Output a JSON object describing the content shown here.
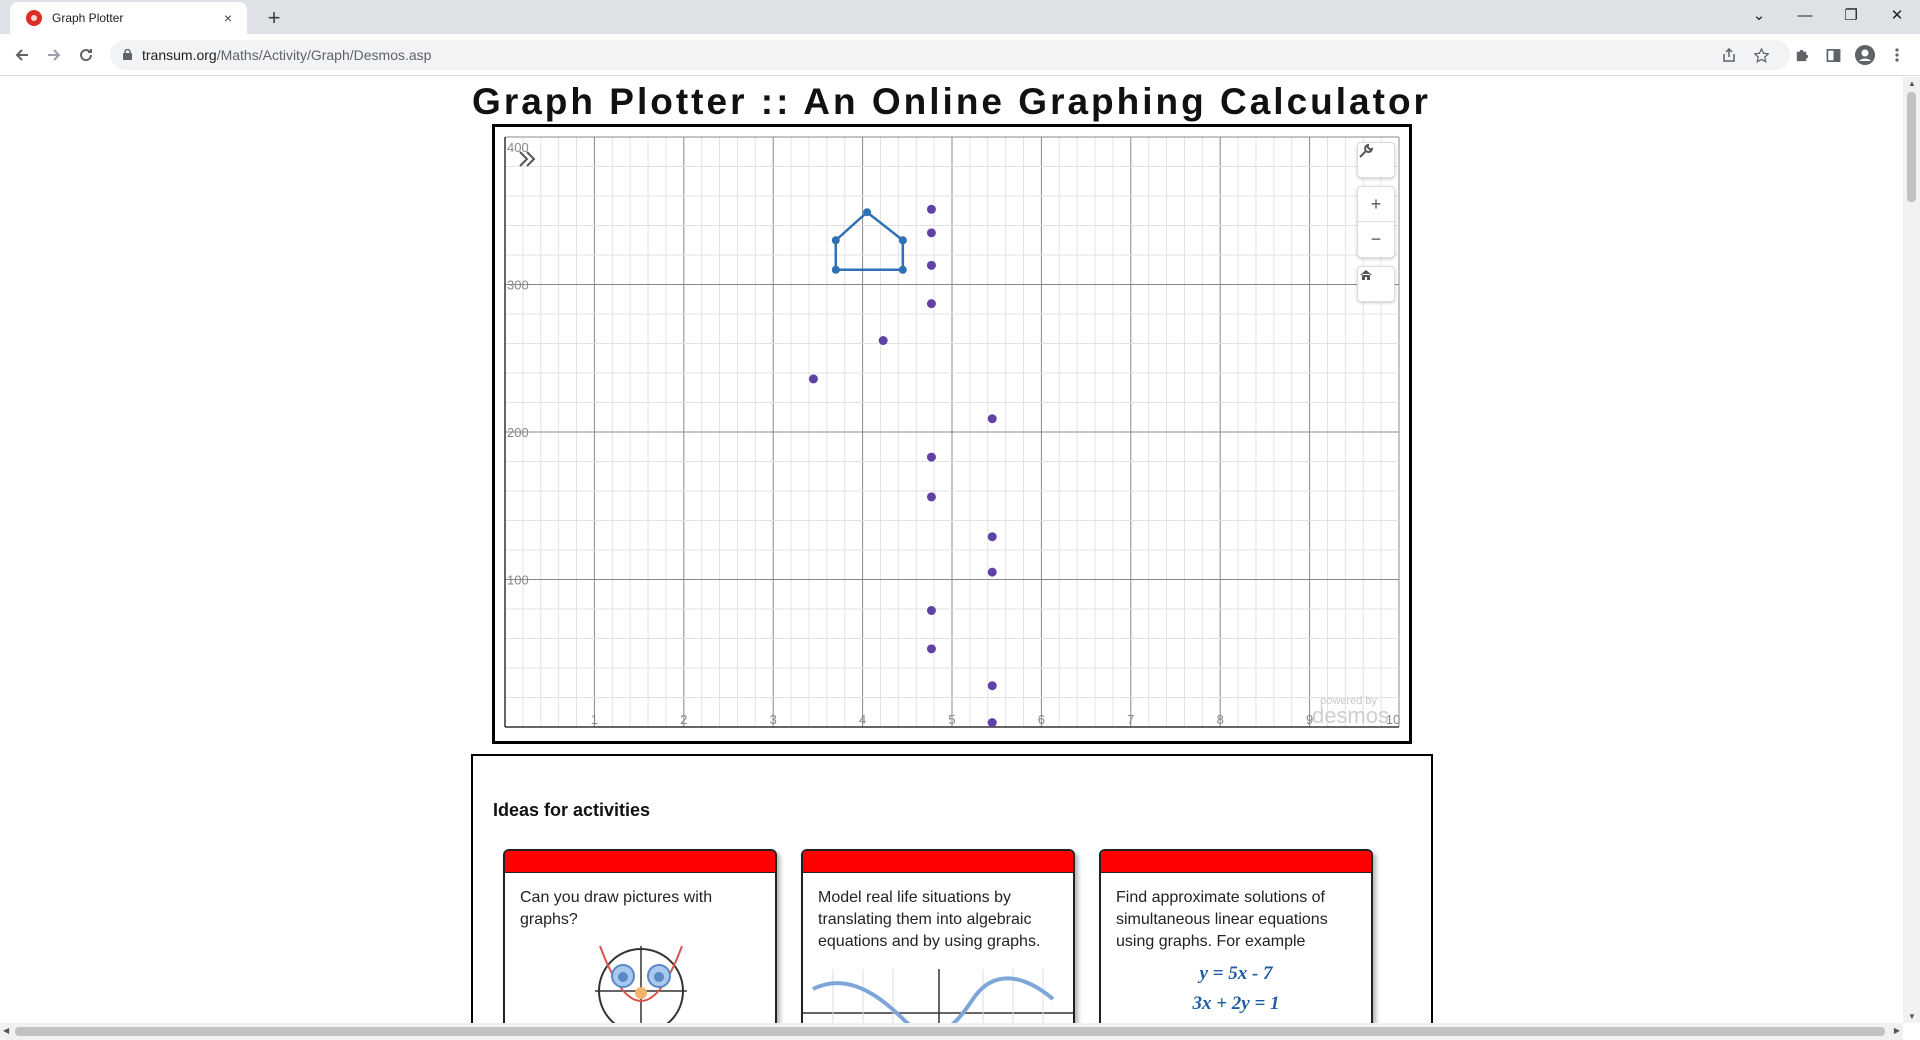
{
  "browser": {
    "tab_title": "Graph Plotter",
    "tab_close": "×",
    "new_tab": "+",
    "url_domain": "transum.org",
    "url_path": "/Maths/Activity/Graph/Desmos.asp",
    "window_controls": {
      "tab_search": "⌄",
      "minimize": "—",
      "restore": "❐",
      "close": "✕"
    }
  },
  "page": {
    "title": "Graph Plotter :: An Online Graphing Calculator"
  },
  "graph": {
    "x_ticks": [
      "1",
      "2",
      "3",
      "4",
      "5",
      "6",
      "7",
      "8",
      "9",
      "10"
    ],
    "y_ticks": [
      "100",
      "200",
      "300",
      "400"
    ],
    "watermark_top": "powered by",
    "watermark_bottom": "desmos",
    "controls": {
      "zoom_in": "+",
      "zoom_out": "−"
    }
  },
  "chart_data": {
    "type": "scatter",
    "title": "",
    "xlabel": "",
    "ylabel": "",
    "xlim": [
      0,
      10
    ],
    "ylim": [
      0,
      400
    ],
    "grid": true,
    "series": [
      {
        "type": "polygon",
        "color": "#2d70b3",
        "points": [
          [
            3.7,
            330
          ],
          [
            4.05,
            349
          ],
          [
            4.45,
            330
          ],
          [
            4.45,
            310
          ],
          [
            3.7,
            310
          ]
        ]
      },
      {
        "type": "points",
        "color": "#6042a6",
        "points": [
          [
            4.77,
            351
          ],
          [
            4.77,
            335
          ],
          [
            4.77,
            313
          ],
          [
            4.77,
            287
          ],
          [
            4.23,
            262
          ],
          [
            3.45,
            236
          ],
          [
            5.45,
            209
          ],
          [
            4.77,
            183
          ],
          [
            4.77,
            156
          ],
          [
            5.45,
            129
          ],
          [
            5.45,
            105
          ],
          [
            4.77,
            79
          ],
          [
            4.77,
            53
          ],
          [
            5.45,
            28
          ],
          [
            5.45,
            3
          ]
        ]
      }
    ]
  },
  "activities": {
    "heading": "Ideas for activities",
    "cards": [
      {
        "text": "Can you draw pictures with graphs?"
      },
      {
        "text": "Model real life situations by translating them into algebraic equations and by using graphs."
      },
      {
        "text": "Find approximate solutions of simultaneous linear equations using graphs. For example",
        "eq1": "y = 5x - 7",
        "eq2": "3x + 2y = 1"
      }
    ]
  }
}
